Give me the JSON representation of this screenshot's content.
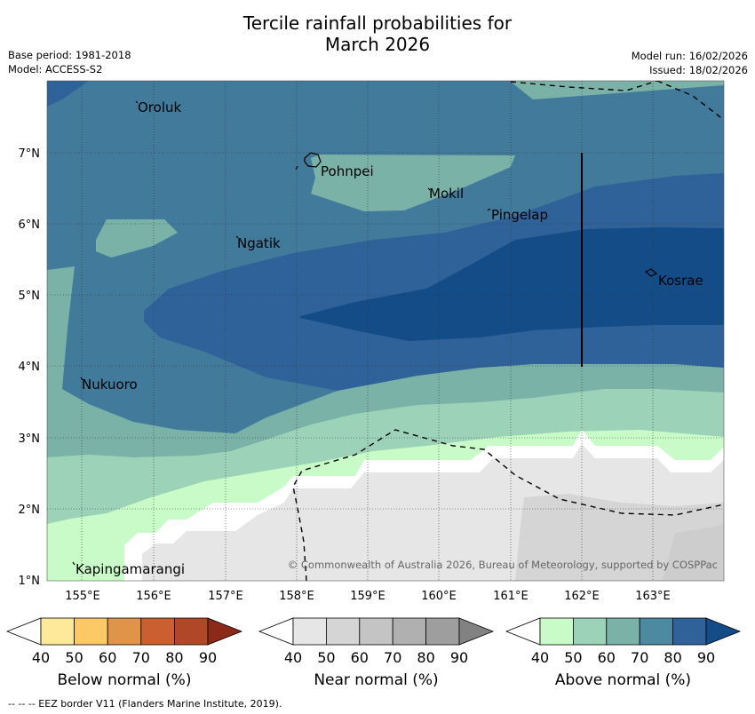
{
  "title_line1": "Tercile rainfall probabilities for",
  "title_line2": "March 2026",
  "info": {
    "base_period": "Base period: 1981-2018",
    "model": "Model: ACCESS-S2",
    "model_run": "Model run: 16/02/2026",
    "issued": "Issued: 18/02/2026"
  },
  "map": {
    "lat_ticks": [
      "7°N",
      "6°N",
      "5°N",
      "4°N",
      "3°N",
      "2°N",
      "1°N"
    ],
    "lon_ticks": [
      "155°E",
      "156°E",
      "157°E",
      "158°E",
      "159°E",
      "160°E",
      "161°E",
      "162°E",
      "163°E"
    ],
    "places": [
      "Oroluk",
      "Pohnpei",
      "Mokil",
      "Pingelap",
      "Ngatik",
      "Kosrae",
      "Nukuoro",
      "Kapingamarangi"
    ],
    "copyright": "© Commonwealth of Australia 2026, Bureau of Meteorology, supported by COSPPac"
  },
  "legend": {
    "below": {
      "label": "Below normal (%)",
      "ticks": [
        "40",
        "50",
        "60",
        "70",
        "80",
        "90"
      ],
      "colors": [
        "#ffffff",
        "#fee99a",
        "#fdc966",
        "#e0944a",
        "#cc5f2f",
        "#b04726",
        "#8c2a1a"
      ]
    },
    "near": {
      "label": "Near normal (%)",
      "ticks": [
        "40",
        "50",
        "60",
        "70",
        "80",
        "90"
      ],
      "colors": [
        "#ffffff",
        "#e6e6e6",
        "#d5d5d5",
        "#c4c4c4",
        "#b0b0b0",
        "#9e9e9e",
        "#828282"
      ]
    },
    "above": {
      "label": "Above normal (%)",
      "ticks": [
        "40",
        "50",
        "60",
        "70",
        "80",
        "90"
      ],
      "colors": [
        "#ffffff",
        "#c8fbc8",
        "#9cd3b8",
        "#7bb2a8",
        "#4b8aa0",
        "#30629a",
        "#134c87"
      ]
    }
  },
  "footer": "--  --  -- EEZ border V11 (Flanders Marine Institute, 2019)."
}
